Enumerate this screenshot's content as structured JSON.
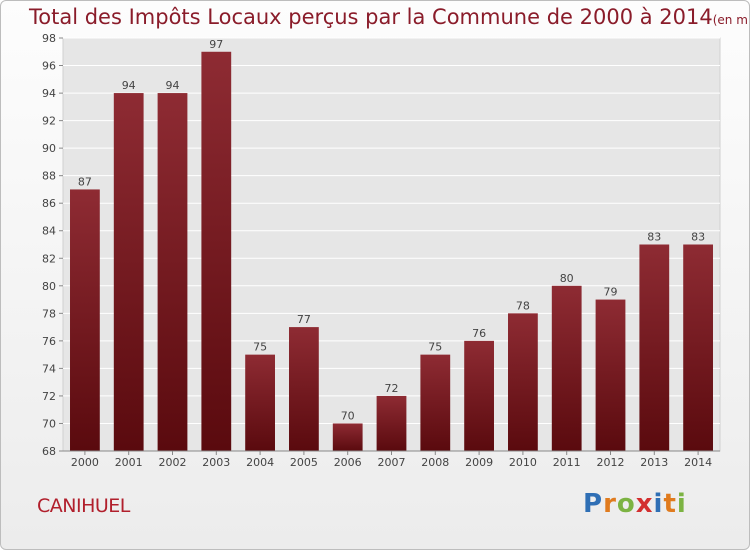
{
  "title": "Total des Impôts Locaux perçus par la Commune de 2000 à 2014",
  "unit_note": "(en milliers d'€)",
  "commune": "CANIHUEL",
  "logo": {
    "text": "Proxiti",
    "letters": [
      "P",
      "r",
      "o",
      "x",
      "i",
      "t",
      "i"
    ],
    "colors": [
      "#2f6fb5",
      "#e07b1e",
      "#7cb342",
      "#d32f2f",
      "#2f6fb5",
      "#e07b1e",
      "#7cb342"
    ]
  },
  "colors": {
    "bar_top": "#8e2b33",
    "bar_bottom": "#5a0a0e",
    "grid": "#ffffff",
    "title": "#8a1c2a"
  },
  "chart_data": {
    "type": "bar",
    "title": "Total des Impôts Locaux perçus par la Commune de 2000 à 2014",
    "categories": [
      "2000",
      "2001",
      "2002",
      "2003",
      "2004",
      "2005",
      "2006",
      "2007",
      "2008",
      "2009",
      "2010",
      "2011",
      "2012",
      "2013",
      "2014"
    ],
    "values": [
      87,
      94,
      94,
      97,
      75,
      77,
      70,
      72,
      75,
      76,
      78,
      80,
      79,
      83,
      83
    ],
    "ylim": [
      68,
      98
    ],
    "yticks": [
      68,
      70,
      72,
      74,
      76,
      78,
      80,
      82,
      84,
      86,
      88,
      90,
      92,
      94,
      96,
      98
    ],
    "grid": true,
    "xlabel": "",
    "ylabel": ""
  }
}
